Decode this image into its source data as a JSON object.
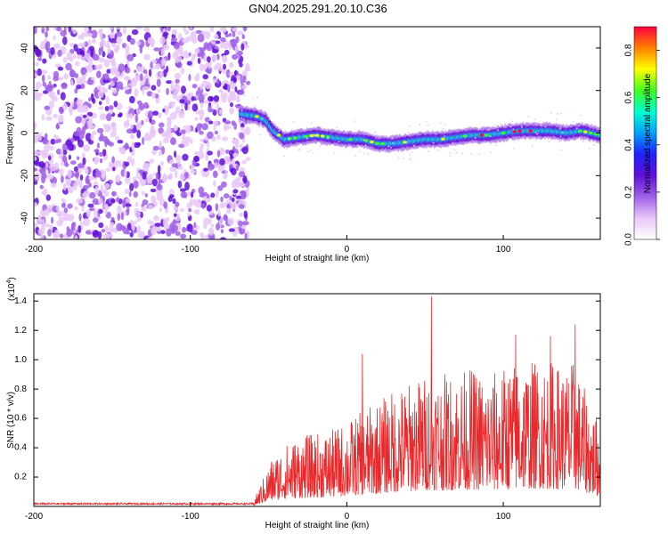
{
  "title": "GN04.2025.291.20.10.C36",
  "chart_data": [
    {
      "type": "heatmap",
      "xlabel": "Height of straight line (km)",
      "ylabel": "Frequency (Hz)",
      "xlim": [
        -200,
        162
      ],
      "ylim": [
        -50,
        50
      ],
      "x_ticks": [
        "-200",
        "-100",
        "0",
        "100"
      ],
      "y_ticks": [
        "-40",
        "-20",
        "0",
        "20",
        "40"
      ],
      "colorbar": {
        "label": "Normalized spectral amplitude",
        "range": [
          0,
          0.9
        ],
        "ticks": [
          "0.0",
          "0.2",
          "0.4",
          "0.6",
          "0.8"
        ]
      },
      "noise_region_x": [
        -200,
        -63
      ],
      "signal_trace": {
        "x": [
          -68,
          -58,
          -52,
          -47,
          -40,
          -30,
          -20,
          -10,
          0,
          10,
          20,
          30,
          40,
          50,
          60,
          70,
          80,
          90,
          100,
          110,
          120,
          130,
          140,
          150,
          162
        ],
        "frequency": [
          9,
          8,
          6,
          1,
          -3,
          -2,
          -1,
          -2,
          -3,
          -3,
          -5,
          -5,
          -4,
          -3,
          -3,
          -2,
          -1,
          -1,
          0,
          1,
          1,
          1,
          0,
          1,
          -1
        ]
      },
      "colors": [
        "#ffffff",
        "#e8c8f8",
        "#a060e8",
        "#6010d8",
        "#2020ff",
        "#00a0ff",
        "#00ffd0",
        "#40ff20",
        "#ffff00",
        "#ff8000",
        "#ff0040"
      ]
    },
    {
      "type": "line",
      "xlabel": "Height of straight line (km)",
      "ylabel": "SNR (10 * v/v)",
      "scale_label": "(x10",
      "scale_exp": "4",
      "scale_close": ")",
      "xlim": [
        -200,
        162
      ],
      "ylim": [
        0,
        1.45
      ],
      "x_ticks": [
        "-200",
        "-100",
        "0",
        "100"
      ],
      "y_ticks": [
        "0.2",
        "0.4",
        "0.6",
        "0.8",
        "1.0",
        "1.2",
        "1.4"
      ],
      "envelope": {
        "x": [
          -200,
          -60,
          -48,
          -40,
          -30,
          -20,
          -10,
          0,
          10,
          20,
          30,
          40,
          50,
          55,
          60,
          70,
          80,
          90,
          100,
          110,
          120,
          130,
          140,
          145,
          150,
          162
        ],
        "typical_max": [
          0.03,
          0.03,
          0.33,
          0.42,
          0.48,
          0.5,
          0.52,
          0.58,
          0.65,
          0.72,
          0.8,
          0.85,
          0.9,
          0.95,
          0.9,
          0.92,
          0.95,
          0.9,
          0.95,
          1.0,
          1.0,
          1.0,
          0.95,
          1.0,
          0.85,
          0.55
        ]
      },
      "peaks": [
        {
          "x": 54,
          "y": 1.43
        },
        {
          "x": 146,
          "y": 1.24
        },
        {
          "x": 108,
          "y": 1.17
        },
        {
          "x": 130,
          "y": 1.16
        },
        {
          "x": 10,
          "y": 1.04
        }
      ],
      "series_color": "#e8282a"
    }
  ]
}
